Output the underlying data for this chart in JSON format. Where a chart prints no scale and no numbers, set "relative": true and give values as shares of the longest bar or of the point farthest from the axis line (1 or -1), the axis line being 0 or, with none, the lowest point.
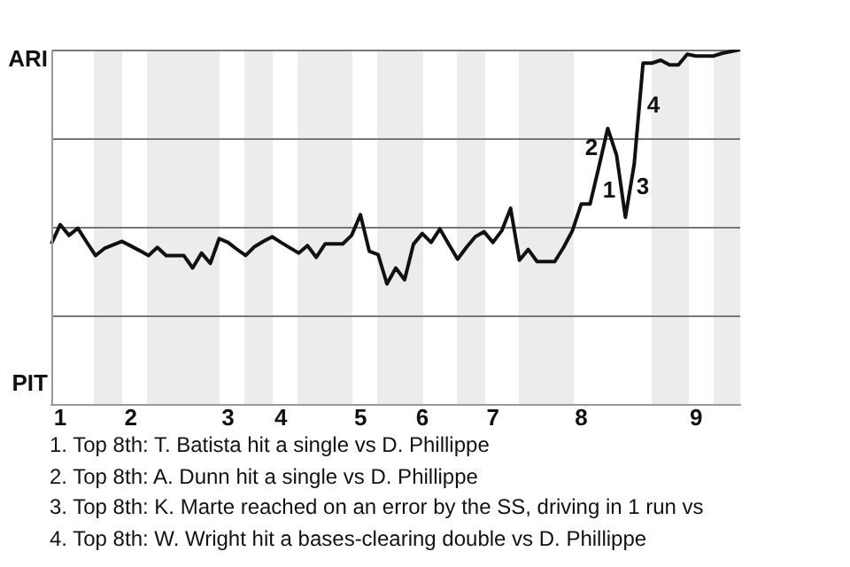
{
  "chart_data": {
    "type": "line",
    "color": "#111111",
    "relative": true,
    "categories": [
      null,
      "1",
      null,
      null,
      null,
      null,
      null,
      null,
      null,
      "2",
      null,
      null,
      null,
      null,
      null,
      null,
      null,
      null,
      null,
      null,
      "3",
      null,
      null,
      null,
      null,
      null,
      "4",
      null,
      null,
      null,
      null,
      null,
      null,
      null,
      null,
      "5",
      null,
      null,
      null,
      null,
      null,
      null,
      "6",
      null,
      null,
      null,
      null,
      null,
      null,
      null,
      "7",
      null,
      null,
      null,
      null,
      null,
      null,
      null,
      null,
      null,
      "8",
      null,
      null,
      null,
      null,
      null,
      null,
      null,
      null,
      null,
      null,
      null,
      null,
      "9",
      null,
      null,
      null,
      null,
      null
    ],
    "values": [
      0.453,
      0.507,
      0.477,
      0.497,
      0.458,
      0.42,
      0.44,
      0.45,
      0.46,
      0.447,
      0.434,
      0.42,
      0.443,
      0.42,
      0.42,
      0.42,
      0.385,
      0.427,
      0.398,
      0.468,
      0.457,
      0.438,
      0.42,
      0.445,
      0.46,
      0.473,
      0.457,
      0.442,
      0.427,
      0.448,
      0.415,
      0.453,
      0.453,
      0.453,
      0.477,
      0.535,
      0.432,
      0.423,
      0.34,
      0.385,
      0.352,
      0.452,
      0.482,
      0.457,
      0.495,
      0.452,
      0.41,
      0.443,
      0.473,
      0.487,
      0.457,
      0.49,
      0.553,
      0.407,
      0.437,
      0.403,
      0.403,
      0.403,
      0.443,
      0.49,
      0.565,
      0.565,
      0.67,
      0.778,
      0.703,
      0.528,
      0.678,
      0.962,
      0.962,
      0.97,
      0.957,
      0.957,
      0.987,
      0.982,
      0.982,
      0.982,
      0.99,
      0.995,
      1
    ],
    "ref_lines": [
      {
        "axis": "y",
        "value": 0.25,
        "color": "#777777"
      },
      {
        "axis": "y",
        "value": 0.5,
        "color": "#777777"
      },
      {
        "axis": "y",
        "value": 0.75,
        "color": "#777777"
      },
      {
        "axis": "y",
        "value": 1,
        "color": "#777777"
      }
    ],
    "marker": "none",
    "line_style": "solid",
    "legend": false,
    "annotations": [
      "ARI",
      "PIT",
      "1",
      "2",
      "3",
      "4",
      "1. Top 8th: T. Batista hit a single vs D. Phillippe",
      "2. Top 8th: A. Dunn hit a single vs D. Phillippe",
      "3. Top 8th: K. Marte reached on an error by the SS, driving in 1 run vs",
      "4. Top 8th: W. Wright hit a bases-clearing double vs D. Phillippe"
    ]
  }
}
